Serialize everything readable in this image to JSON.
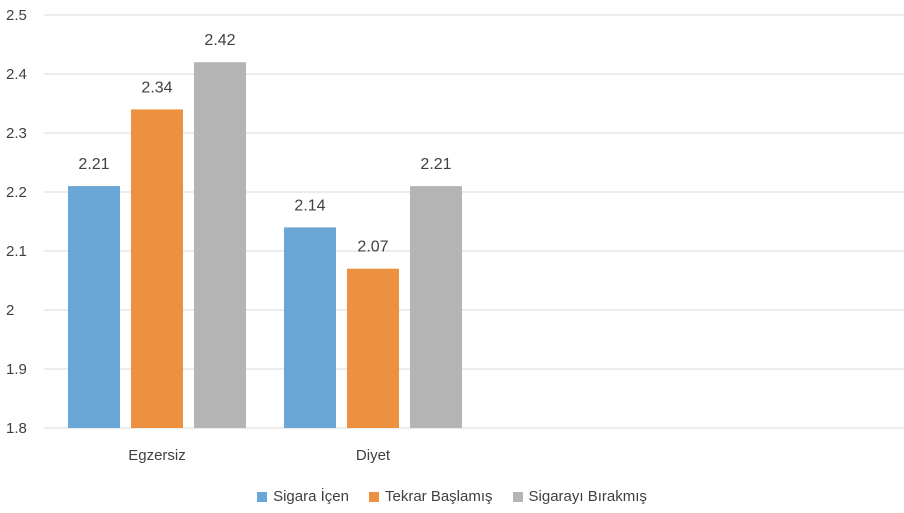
{
  "chart_data": {
    "type": "bar",
    "categories": [
      "Egzersiz",
      "Diyet"
    ],
    "series": [
      {
        "name": "Sigara İçen",
        "values": [
          2.21,
          2.14
        ],
        "color": "#6aa6d6"
      },
      {
        "name": "Tekrar Başlamış",
        "values": [
          2.34,
          2.07
        ],
        "color": "#ec9140"
      },
      {
        "name": "Sigarayı Bırakmış",
        "values": [
          2.42,
          2.21
        ],
        "color": "#b4b4b4"
      }
    ],
    "data_labels": [
      [
        "2.21",
        "2.14"
      ],
      [
        "2.34",
        "2.07"
      ],
      [
        "2.42",
        "2.21"
      ]
    ],
    "ylim": [
      1.8,
      2.5
    ],
    "yticks": [
      "1.8",
      "1.9",
      "2",
      "2.1",
      "2.2",
      "2.3",
      "2.4",
      "2.5"
    ],
    "grid": true,
    "legend_position": "bottom"
  }
}
